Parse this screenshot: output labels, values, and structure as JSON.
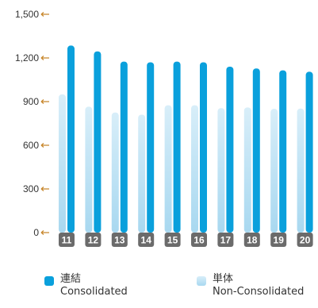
{
  "chart_data": {
    "type": "bar",
    "categories": [
      "11",
      "12",
      "13",
      "14",
      "15",
      "16",
      "17",
      "18",
      "19",
      "20"
    ],
    "series": [
      {
        "name": "単体 Non-Consolidated",
        "values": [
          950,
          865,
          825,
          810,
          875,
          875,
          855,
          860,
          850,
          852
        ]
      },
      {
        "name": "連結 Consolidated",
        "values": [
          1285,
          1245,
          1175,
          1170,
          1175,
          1170,
          1140,
          1128,
          1115,
          1105
        ]
      }
    ],
    "yticks": [
      0,
      300,
      600,
      900,
      1200,
      1500
    ],
    "ytick_labels": [
      "0",
      "300",
      "600",
      "900",
      "1,200",
      "1,500"
    ],
    "ylim": [
      0,
      1500
    ],
    "legend_position": "bottom",
    "colors": {
      "consolidated": "#0aa0dc",
      "non_consolidated_top": "#d8eef9",
      "non_consolidated_bottom": "#a8d8f0",
      "category_badge": "#6b6b6b",
      "tick_arrow": "#c8882e"
    }
  },
  "legend": {
    "consolidated": {
      "jp": "連結",
      "en": "Consolidated"
    },
    "non_consolidated": {
      "jp": "単体",
      "en": "Non-Consolidated"
    }
  }
}
